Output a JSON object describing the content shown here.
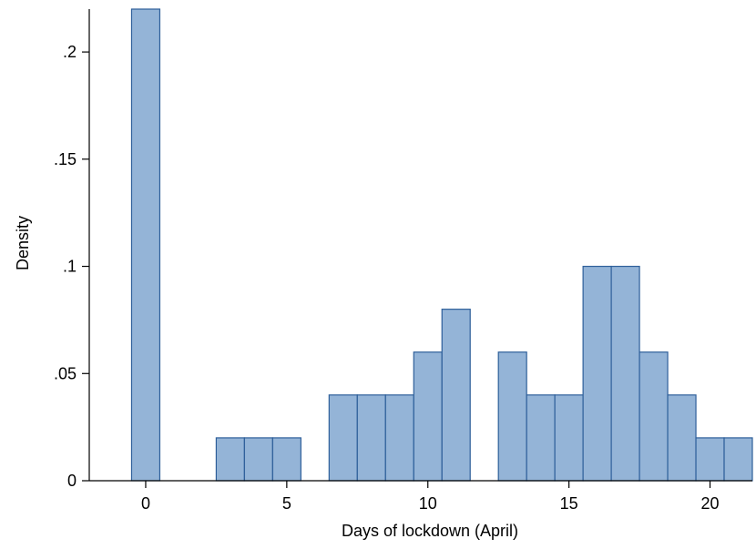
{
  "chart_data": {
    "type": "bar",
    "xlabel": "Days of lockdown (April)",
    "ylabel": "Density",
    "xlim": [
      -1.5,
      22
    ],
    "ylim": [
      0,
      0.22
    ],
    "x_ticks": [
      {
        "value": 0,
        "label": "0"
      },
      {
        "value": 5,
        "label": "5"
      },
      {
        "value": 10,
        "label": "10"
      },
      {
        "value": 15,
        "label": "15"
      },
      {
        "value": 20,
        "label": "20"
      }
    ],
    "y_ticks": [
      {
        "value": 0,
        "label": "0"
      },
      {
        "value": 0.05,
        "label": ".05"
      },
      {
        "value": 0.1,
        "label": ".1"
      },
      {
        "value": 0.15,
        "label": ".15"
      },
      {
        "value": 0.2,
        "label": ".2"
      }
    ],
    "bin_width": 1,
    "bins": [
      {
        "start": 0,
        "value": 0.22
      },
      {
        "start": 3,
        "value": 0.02
      },
      {
        "start": 4,
        "value": 0.02
      },
      {
        "start": 5,
        "value": 0.02
      },
      {
        "start": 7,
        "value": 0.04
      },
      {
        "start": 8,
        "value": 0.04
      },
      {
        "start": 9,
        "value": 0.04
      },
      {
        "start": 10,
        "value": 0.06
      },
      {
        "start": 11,
        "value": 0.08
      },
      {
        "start": 13,
        "value": 0.06
      },
      {
        "start": 14,
        "value": 0.04
      },
      {
        "start": 15,
        "value": 0.04
      },
      {
        "start": 16,
        "value": 0.1
      },
      {
        "start": 17,
        "value": 0.1
      },
      {
        "start": 18,
        "value": 0.06
      },
      {
        "start": 19,
        "value": 0.04
      },
      {
        "start": 20,
        "value": 0.02
      },
      {
        "start": 21,
        "value": 0.02
      }
    ],
    "grid": false,
    "colors": {
      "bar_fill": "#94b4d7",
      "bar_edge": "#2e5f9a",
      "axis": "#000000"
    }
  }
}
